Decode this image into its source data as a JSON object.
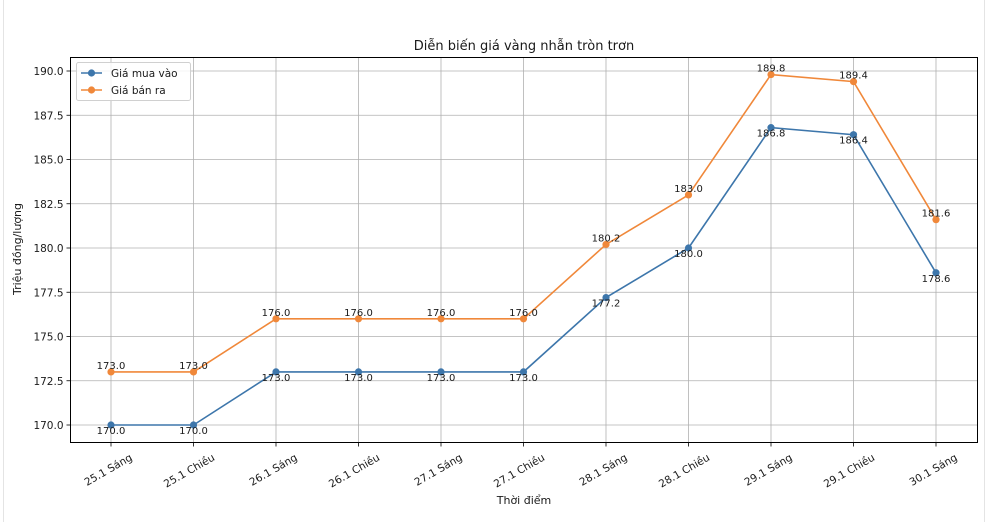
{
  "chart_data": {
    "type": "line",
    "title": "Diễn biến giá vàng nhẫn tròn trơn",
    "xlabel": "Thời điểm",
    "ylabel": "Triệu đồng/lượng",
    "categories": [
      "25.1 Sáng",
      "25.1 Chiều",
      "26.1 Sáng",
      "26.1 Chiều",
      "27.1 Sáng",
      "27.1 Chiều",
      "28.1 Sáng",
      "28.1 Chiều",
      "29.1 Sáng",
      "29.1 Chiều",
      "30.1 Sáng"
    ],
    "series": [
      {
        "name": "Giá mua vào",
        "color": "#3d76ab",
        "values": [
          170.0,
          170.0,
          173.0,
          173.0,
          173.0,
          173.0,
          177.2,
          180.0,
          186.8,
          186.4,
          178.6
        ]
      },
      {
        "name": "Giá bán ra",
        "color": "#f0883a",
        "values": [
          173.0,
          173.0,
          176.0,
          176.0,
          176.0,
          176.0,
          180.2,
          183.0,
          189.8,
          189.4,
          181.6
        ]
      }
    ],
    "yticks": [
      170.0,
      172.5,
      175.0,
      177.5,
      180.0,
      182.5,
      185.0,
      187.5,
      190.0
    ],
    "ylim": [
      169.0,
      190.8
    ],
    "grid": true,
    "legend_position": "upper left",
    "markers": "circle",
    "data_labels": true
  }
}
